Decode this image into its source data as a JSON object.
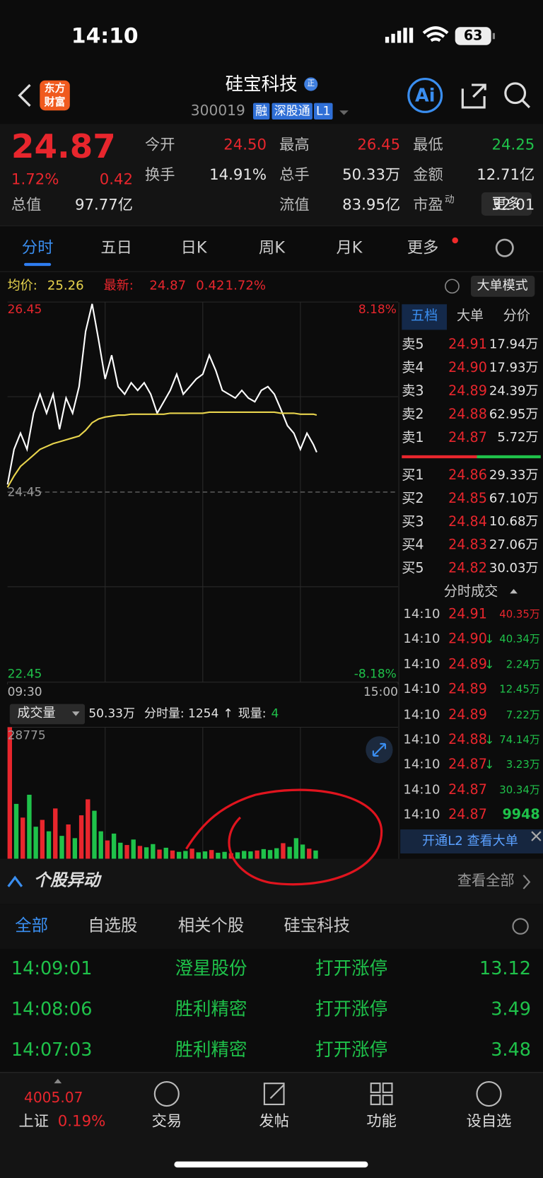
{
  "status_bar": {
    "time": "14:10",
    "battery": "63"
  },
  "header": {
    "logo_top": "东方",
    "logo_bottom": "财富",
    "name": "硅宝科技",
    "badge": "正",
    "code": "300019",
    "tags": [
      "融",
      "深股通",
      "L1"
    ],
    "ai": "Ai"
  },
  "quote": {
    "price": "24.87",
    "pct": "1.72%",
    "change": "0.42",
    "fields": [
      {
        "label": "今开",
        "value": "24.50"
      },
      {
        "label": "最高",
        "value": "26.45"
      },
      {
        "label": "最低",
        "value": "24.25"
      },
      {
        "label": "换手",
        "value": "14.91%"
      },
      {
        "label": "总手",
        "value": "50.33万"
      },
      {
        "label": "金额",
        "value": "12.71亿"
      },
      {
        "label": "流值",
        "value": "83.95亿"
      },
      {
        "label": "市盈",
        "sup": "动",
        "value": "32.01"
      }
    ],
    "total_label": "总值",
    "total_value": "97.77亿",
    "more": "更多"
  },
  "tabs": [
    "分时",
    "五日",
    "日K",
    "周K",
    "月K",
    "更多"
  ],
  "chart_header": {
    "avg_label": "均价:",
    "avg": "25.26",
    "latest_label": "最新:",
    "latest": "24.87",
    "change": "0.42",
    "pct": "1.72%",
    "mode": "大单模式"
  },
  "volume_header": {
    "selector": "成交量",
    "total": "50.33万",
    "minute_volume": "分时量: 1254",
    "arrow": "↑",
    "current_label": "现量:",
    "current": "4"
  },
  "chart_data": [
    {
      "type": "line",
      "xlim": [
        0,
        240
      ],
      "xticks": [
        {
          "value": 0,
          "label": "09:30"
        },
        {
          "value": 240,
          "label": "15:00"
        }
      ],
      "ylim": [
        22.45,
        26.45
      ],
      "yticks": [
        26.45,
        24.45,
        22.45
      ],
      "y2lim": [
        -8.18,
        8.18
      ],
      "y2ticks": [
        {
          "value": 8.18,
          "label": "8.18%"
        },
        {
          "value": -8.18,
          "label": "-8.18%"
        }
      ],
      "x": [
        0,
        4,
        8,
        12,
        16,
        20,
        24,
        28,
        32,
        36,
        40,
        44,
        48,
        52,
        56,
        60,
        64,
        68,
        72,
        76,
        80,
        84,
        88,
        92,
        96,
        100,
        104,
        108,
        112,
        116,
        120,
        124,
        128,
        132,
        136,
        140,
        144,
        148,
        152,
        156,
        160,
        164,
        168,
        172,
        176,
        180,
        184,
        188,
        190
      ],
      "series": [
        {
          "color": "#ffffff",
          "values": [
            24.53,
            24.9,
            25.07,
            24.9,
            25.28,
            25.48,
            25.28,
            25.48,
            25.11,
            25.44,
            25.28,
            25.56,
            26.14,
            26.43,
            26.05,
            25.64,
            25.89,
            25.56,
            25.48,
            25.6,
            25.52,
            25.6,
            25.48,
            25.28,
            25.4,
            25.52,
            25.69,
            25.48,
            25.56,
            25.64,
            25.69,
            25.89,
            25.73,
            25.52,
            25.48,
            25.44,
            25.52,
            25.44,
            25.4,
            25.52,
            25.56,
            25.48,
            25.32,
            25.15,
            25.07,
            24.9,
            25.07,
            24.95,
            24.87
          ]
        },
        {
          "color": "#e8d44d",
          "values": [
            24.5,
            24.62,
            24.72,
            24.78,
            24.84,
            24.9,
            24.93,
            24.96,
            24.98,
            25.0,
            25.02,
            25.04,
            25.1,
            25.18,
            25.22,
            25.24,
            25.25,
            25.26,
            25.26,
            25.27,
            25.27,
            25.27,
            25.27,
            25.27,
            25.27,
            25.28,
            25.28,
            25.28,
            25.28,
            25.28,
            25.28,
            25.29,
            25.29,
            25.29,
            25.29,
            25.29,
            25.29,
            25.29,
            25.29,
            25.29,
            25.29,
            25.29,
            25.28,
            25.28,
            25.28,
            25.27,
            25.27,
            25.27,
            25.26
          ]
        }
      ]
    },
    {
      "type": "bar",
      "xlim": [
        0,
        240
      ],
      "ylim": [
        0,
        28775
      ],
      "yticks": [
        28775
      ],
      "x": [
        0,
        4,
        8,
        12,
        16,
        20,
        24,
        28,
        32,
        36,
        40,
        44,
        48,
        52,
        56,
        60,
        64,
        68,
        72,
        76,
        80,
        84,
        88,
        92,
        96,
        100,
        104,
        108,
        112,
        116,
        120,
        124,
        128,
        132,
        136,
        140,
        144,
        148,
        152,
        156,
        160,
        164,
        168,
        172,
        176,
        180,
        184,
        188
      ],
      "values": [
        28775,
        12000,
        9000,
        14000,
        7000,
        8500,
        6000,
        11000,
        5000,
        7500,
        4500,
        9500,
        13000,
        10500,
        6000,
        4000,
        5500,
        3500,
        3000,
        4200,
        2800,
        2500,
        3200,
        2000,
        2400,
        1800,
        1500,
        1700,
        2200,
        1400,
        1600,
        1900,
        1300,
        1500,
        1200,
        1400,
        1700,
        1600,
        1800,
        2100,
        1900,
        2300,
        3400,
        2600,
        4500,
        3100,
        2200,
        1800
      ],
      "colors": [
        "#e8262d",
        "#1fc24a",
        "#e8262d",
        "#1fc24a",
        "#1fc24a",
        "#e8262d",
        "#1fc24a",
        "#e8262d",
        "#1fc24a",
        "#e8262d",
        "#1fc24a",
        "#e8262d",
        "#e8262d",
        "#1fc24a",
        "#1fc24a",
        "#e8262d",
        "#1fc24a",
        "#1fc24a",
        "#e8262d",
        "#1fc24a",
        "#e8262d",
        "#1fc24a",
        "#1fc24a",
        "#e8262d",
        "#1fc24a",
        "#e8262d",
        "#1fc24a",
        "#1fc24a",
        "#e8262d",
        "#1fc24a",
        "#1fc24a",
        "#e8262d",
        "#1fc24a",
        "#1fc24a",
        "#e8262d",
        "#1fc24a",
        "#1fc24a",
        "#1fc24a",
        "#e8262d",
        "#1fc24a",
        "#1fc24a",
        "#1fc24a",
        "#e8262d",
        "#1fc24a",
        "#1fc24a",
        "#1fc24a",
        "#e8262d",
        "#1fc24a"
      ]
    }
  ],
  "order_book": {
    "tabs": [
      "五档",
      "大单",
      "分价"
    ],
    "asks": [
      {
        "label": "卖5",
        "price": "24.91",
        "volume": "17.94万"
      },
      {
        "label": "卖4",
        "price": "24.90",
        "volume": "17.93万"
      },
      {
        "label": "卖3",
        "price": "24.89",
        "volume": "24.39万"
      },
      {
        "label": "卖2",
        "price": "24.88",
        "volume": "62.95万"
      },
      {
        "label": "卖1",
        "price": "24.87",
        "volume": "5.72万"
      }
    ],
    "bids": [
      {
        "label": "买1",
        "price": "24.86",
        "volume": "29.33万"
      },
      {
        "label": "买2",
        "price": "24.85",
        "volume": "67.10万"
      },
      {
        "label": "买3",
        "price": "24.84",
        "volume": "10.68万"
      },
      {
        "label": "买4",
        "price": "24.83",
        "volume": "27.06万"
      },
      {
        "label": "买5",
        "price": "24.82",
        "volume": "30.03万"
      }
    ]
  },
  "trades": {
    "title": "分时成交",
    "rows": [
      {
        "time": "14:10",
        "price": "24.91",
        "volume": "40.35万",
        "color": "#e8262d"
      },
      {
        "time": "14:10",
        "price": "24.90",
        "flag": "↓",
        "volume": "40.34万",
        "color": "#1fc24a"
      },
      {
        "time": "14:10",
        "price": "24.89",
        "flag": "↓",
        "volume": "2.24万",
        "color": "#1fc24a"
      },
      {
        "time": "14:10",
        "price": "24.89",
        "volume": "12.45万",
        "color": "#1fc24a"
      },
      {
        "time": "14:10",
        "price": "24.89",
        "volume": "7.22万",
        "color": "#1fc24a"
      },
      {
        "time": "14:10",
        "price": "24.88",
        "flag": "↓",
        "volume": "74.14万",
        "color": "#1fc24a"
      },
      {
        "time": "14:10",
        "price": "24.87",
        "flag": "↓",
        "volume": "3.23万",
        "color": "#1fc24a"
      },
      {
        "time": "14:10",
        "price": "24.87",
        "volume": "30.34万",
        "color": "#1fc24a"
      },
      {
        "time": "14:10",
        "price": "24.87",
        "volume": "9948",
        "color": "#1fc24a"
      }
    ]
  },
  "l2_banner": "开通L2 查看大单",
  "alerts": {
    "title": "个股异动",
    "view_all": "查看全部",
    "filters": [
      "全部",
      "自选股",
      "相关个股",
      "硅宝科技"
    ],
    "rows": [
      {
        "time": "14:09:01",
        "stock": "澄星股份",
        "event": "打开涨停",
        "value": "13.12"
      },
      {
        "time": "14:08:06",
        "stock": "胜利精密",
        "event": "打开涨停",
        "value": "3.49"
      },
      {
        "time": "14:07:03",
        "stock": "胜利精密",
        "event": "打开涨停",
        "value": "3.48"
      }
    ]
  },
  "bottom_nav": {
    "index_value": "4005.07",
    "index_name": "上证",
    "index_pct": "0.19%",
    "items": [
      "交易",
      "发帖",
      "功能",
      "设自选"
    ]
  }
}
